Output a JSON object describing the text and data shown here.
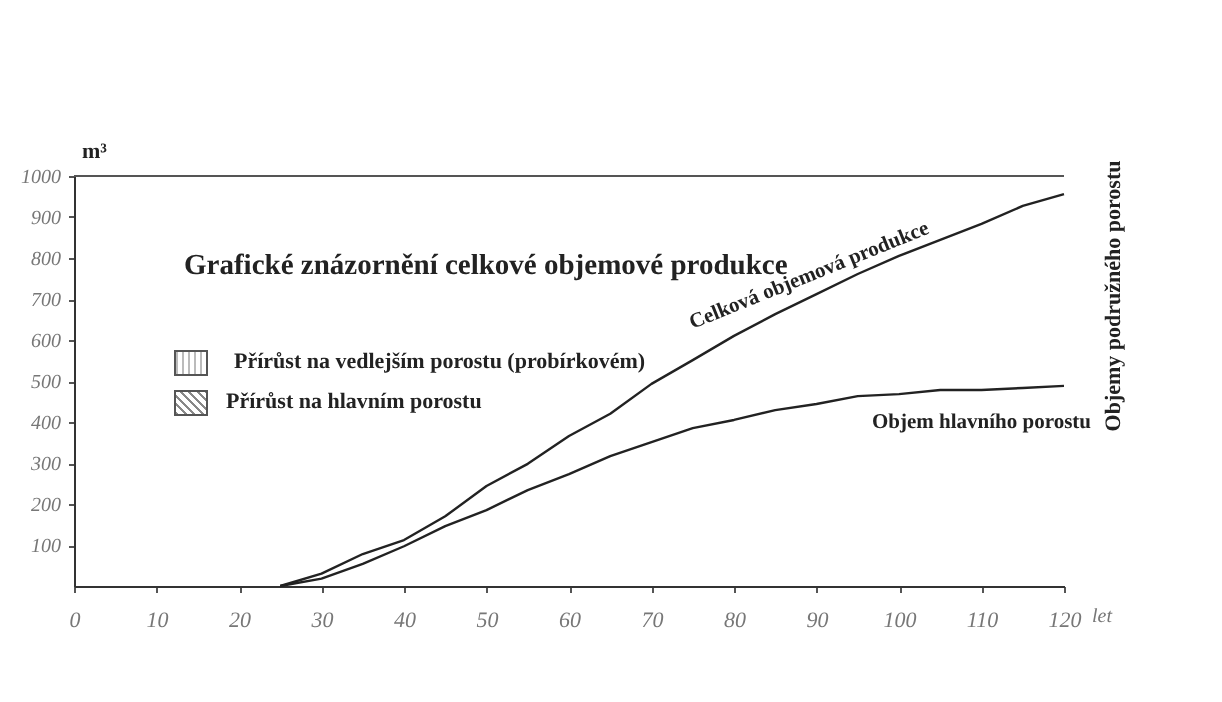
{
  "chart_data": {
    "type": "line",
    "title": "Grafické znázornění celkové objemové produkce",
    "xlabel": "let",
    "ylabel": "m³",
    "x": [
      25,
      30,
      35,
      40,
      45,
      50,
      55,
      60,
      65,
      70,
      75,
      80,
      85,
      90,
      95,
      100,
      105,
      110,
      115,
      120
    ],
    "series": [
      {
        "name": "Celková objemová produkce",
        "color": "#222222",
        "values": [
          0,
          30,
          78,
          112,
          170,
          244,
          298,
          366,
          420,
          493,
          551,
          610,
          663,
          712,
          761,
          805,
          844,
          883,
          927,
          956
        ]
      },
      {
        "name": "Objem hlavního porostu",
        "color": "#222222",
        "values": [
          0,
          18,
          54,
          97,
          146,
          185,
          234,
          273,
          317,
          351,
          385,
          405,
          429,
          444,
          463,
          468,
          478,
          478,
          483,
          488
        ]
      }
    ],
    "xlim": [
      0,
      120
    ],
    "ylim": [
      0,
      1000
    ],
    "xticks": [
      0,
      10,
      20,
      30,
      40,
      50,
      60,
      70,
      80,
      90,
      100,
      110,
      120
    ],
    "yticks": [
      100,
      200,
      300,
      400,
      500,
      600,
      700,
      800,
      900,
      1000
    ],
    "grid": false,
    "legend": false,
    "marker": "none",
    "line_style": "solid",
    "annotations": [
      "Přírůst na vedlejším porostu (probírkovém)",
      "Přírůst na hlavním porostu",
      "Objemy podružného porostu"
    ]
  }
}
